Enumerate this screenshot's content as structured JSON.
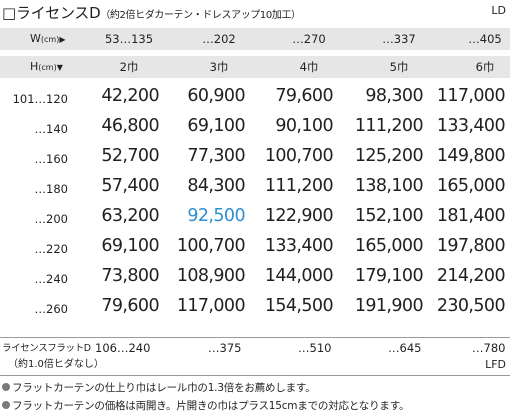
{
  "title": "□ライセンスD",
  "title_note": "（約2倍ヒダカーテン・ドレスアップ10加工）",
  "product_code": "LD",
  "width_header": {
    "axis_label": "W",
    "unit": "(cm)",
    "arrow": "▶",
    "ranges": [
      "53…135",
      "…202",
      "…270",
      "…337",
      "…405"
    ]
  },
  "height_header": {
    "axis_label": "H",
    "unit": "(cm)",
    "arrow": "▼",
    "widths": [
      "2巾",
      "3巾",
      "4巾",
      "5巾",
      "6巾"
    ]
  },
  "rows": [
    {
      "height": "101…120",
      "prices": [
        "42,200",
        "60,900",
        "79,600",
        "98,300",
        "117,000"
      ]
    },
    {
      "height": "…140",
      "prices": [
        "46,800",
        "69,100",
        "90,100",
        "111,200",
        "133,400"
      ]
    },
    {
      "height": "…160",
      "prices": [
        "52,700",
        "77,300",
        "100,700",
        "125,200",
        "149,800"
      ]
    },
    {
      "height": "…180",
      "prices": [
        "57,400",
        "84,300",
        "111,200",
        "138,100",
        "165,000"
      ]
    },
    {
      "height": "…200",
      "prices": [
        "63,200",
        "92,500",
        "122,900",
        "152,100",
        "181,400"
      ]
    },
    {
      "height": "…220",
      "prices": [
        "69,100",
        "100,700",
        "133,400",
        "165,000",
        "197,800"
      ]
    },
    {
      "height": "…240",
      "prices": [
        "73,800",
        "108,900",
        "144,000",
        "179,100",
        "214,200"
      ]
    },
    {
      "height": "…260",
      "prices": [
        "79,600",
        "117,000",
        "154,500",
        "191,900",
        "230,500"
      ]
    }
  ],
  "highlight_color": "#2f8fcf",
  "flat": {
    "label": "ライセンスフラットD",
    "note": "（約1.0倍ヒダなし）",
    "ranges": [
      "106…240",
      "…375",
      "…510",
      "…645",
      "…780"
    ],
    "code": "LFD"
  },
  "notes": [
    "フラットカーテンの仕上り巾はレール巾の1.3倍をお薦めします。",
    "フラットカーテンの価格は両開き。片開きの巾はプラス15cmまでの対応となります。"
  ]
}
